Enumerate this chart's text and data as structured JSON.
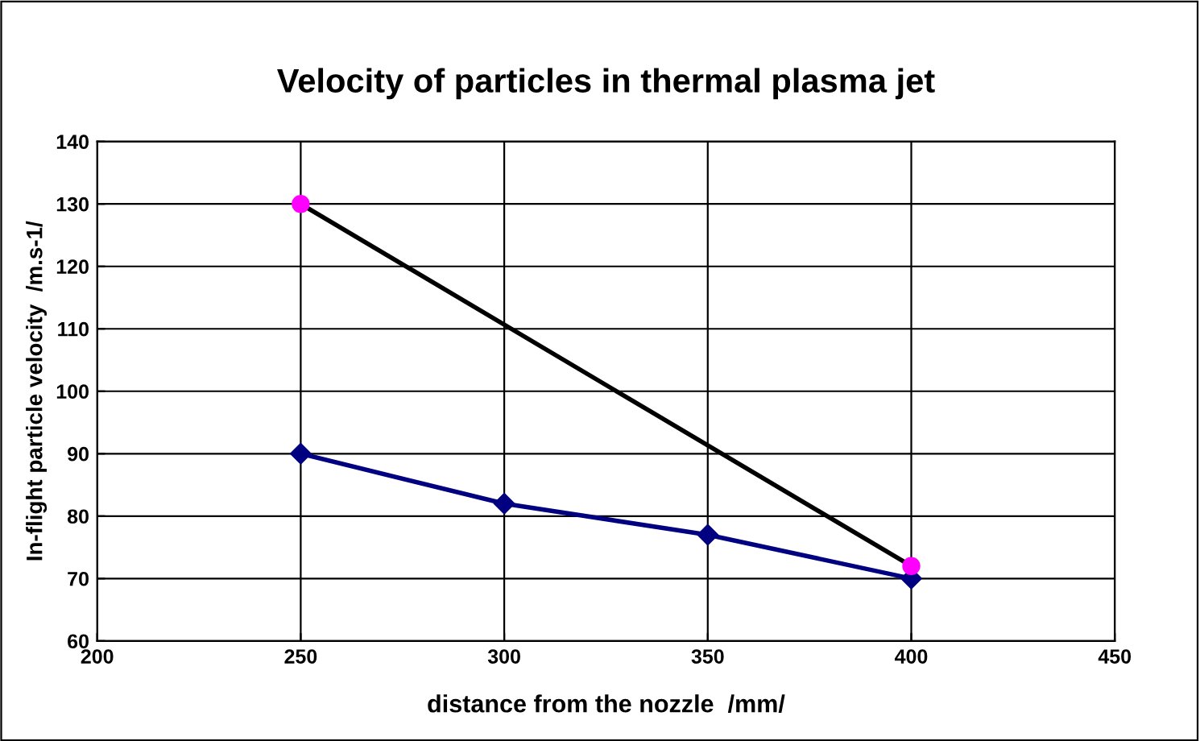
{
  "chart_data": {
    "type": "line",
    "title": "Velocity of particles in thermal plasma jet",
    "xlabel": "distance from the nozzle  /mm/",
    "ylabel": "In-flight particle velocity  /m.s-1/",
    "series": [
      {
        "color": "#000080",
        "marker": "diamond",
        "x": [
          250,
          300,
          350,
          400
        ],
        "values": [
          90,
          82,
          77,
          70
        ]
      },
      {
        "color": "#000000",
        "marker": "none",
        "x": [
          250,
          400
        ],
        "values": [
          130,
          72
        ]
      },
      {
        "type": "scatter",
        "color": "#ff00ff",
        "marker": "circle",
        "x": [
          250,
          400
        ],
        "values": [
          130,
          72
        ]
      }
    ],
    "xlim": [
      200,
      450
    ],
    "xticks": [
      200,
      250,
      300,
      350,
      400,
      450
    ],
    "ylim": [
      60,
      140
    ],
    "yticks": [
      60,
      70,
      80,
      90,
      100,
      110,
      120,
      130,
      140
    ],
    "grid": true
  }
}
